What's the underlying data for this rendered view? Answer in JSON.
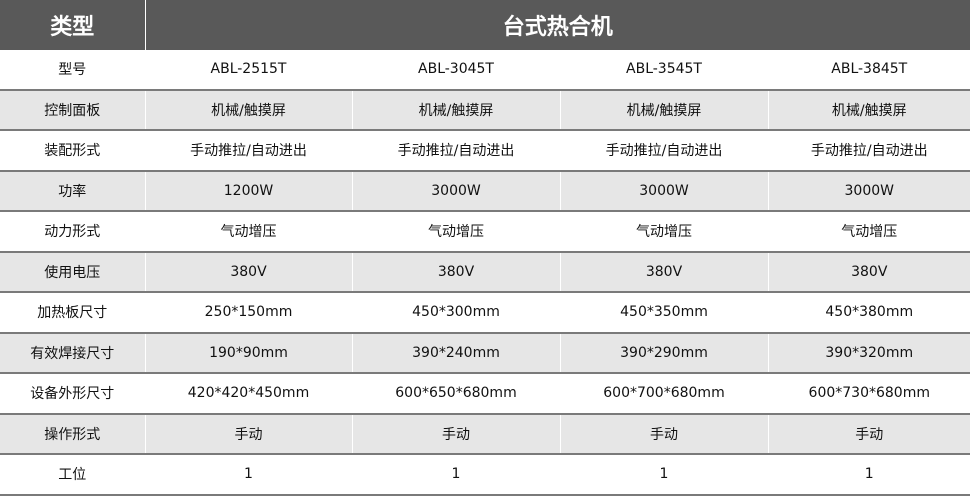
{
  "header": {
    "type_label": "类型",
    "category": "台式热合机"
  },
  "rows": [
    {
      "label": "型号",
      "values": [
        "ABL-2515T",
        "ABL-3045T",
        "ABL-3545T",
        "ABL-3845T"
      ]
    },
    {
      "label": "控制面板",
      "values": [
        "机械/触摸屏",
        "机械/触摸屏",
        "机械/触摸屏",
        "机械/触摸屏"
      ]
    },
    {
      "label": "装配形式",
      "values": [
        "手动推拉/自动进出",
        "手动推拉/自动进出",
        "手动推拉/自动进出",
        "手动推拉/自动进出"
      ]
    },
    {
      "label": "功率",
      "values": [
        "1200W",
        "3000W",
        "3000W",
        "3000W"
      ]
    },
    {
      "label": "动力形式",
      "values": [
        "气动增压",
        "气动增压",
        "气动增压",
        "气动增压"
      ]
    },
    {
      "label": "使用电压",
      "values": [
        "380V",
        "380V",
        "380V",
        "380V"
      ]
    },
    {
      "label": "加热板尺寸",
      "values": [
        "250*150mm",
        "450*300mm",
        "450*350mm",
        "450*380mm"
      ]
    },
    {
      "label": "有效焊接尺寸",
      "values": [
        "190*90mm",
        "390*240mm",
        "390*290mm",
        "390*320mm"
      ]
    },
    {
      "label": "设备外形尺寸",
      "values": [
        "420*420*450mm",
        "600*650*680mm",
        "600*700*680mm",
        "600*730*680mm"
      ]
    },
    {
      "label": "操作形式",
      "values": [
        "手动",
        "手动",
        "手动",
        "手动"
      ]
    },
    {
      "label": "工位",
      "values": [
        "1",
        "1",
        "1",
        "1"
      ]
    }
  ],
  "colors": {
    "header_bg": "#595959",
    "alt_row_bg": "#e6e6e6",
    "divider": "#7a7a7a"
  }
}
